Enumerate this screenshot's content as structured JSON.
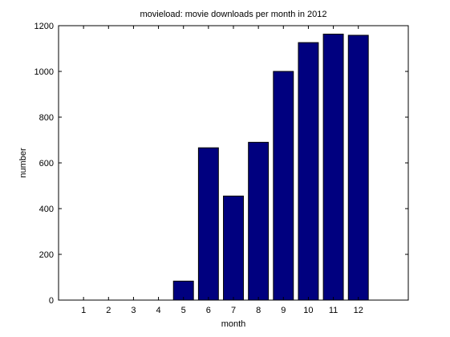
{
  "chart_data": {
    "type": "bar",
    "title": "movieload: movie downloads per month in 2012",
    "xlabel": "month",
    "ylabel": "number",
    "categories": [
      "1",
      "2",
      "3",
      "4",
      "5",
      "6",
      "7",
      "8",
      "9",
      "10",
      "11",
      "12"
    ],
    "values": [
      0,
      0,
      0,
      0,
      83,
      666,
      455,
      690,
      1000,
      1126,
      1163,
      1158
    ],
    "xlim": [
      0,
      14
    ],
    "ylim": [
      0,
      1200
    ],
    "yticks": [
      "0",
      "200",
      "400",
      "600",
      "800",
      "1000",
      "1200"
    ],
    "grid": false,
    "legend": "none",
    "colors": {
      "bar_fill": "#00007f",
      "bar_edge": "#000000",
      "axes": "#000000",
      "background": "#ffffff"
    }
  }
}
